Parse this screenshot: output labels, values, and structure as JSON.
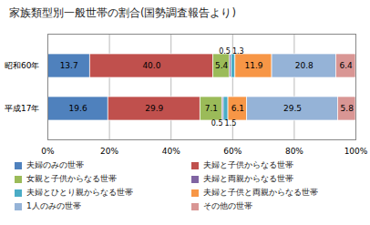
{
  "chart_data": {
    "type": "bar",
    "title": "家族類型別一般世帯の割合(国勢調査報告より)",
    "orientation": "horizontal",
    "stacked": true,
    "data_labels": true,
    "grid": true,
    "categories": [
      "昭和60年",
      "平成17年"
    ],
    "series": [
      {
        "name": "夫婦のみの世帯",
        "color": "#4f81bd",
        "values": [
          13.7,
          19.6
        ]
      },
      {
        "name": "夫婦と子供からなる世帯",
        "color": "#c0504d",
        "values": [
          40.0,
          29.9
        ],
        "value_labels": [
          "40.0",
          "29.9"
        ]
      },
      {
        "name": "女親と子供からなる世帯",
        "color": "#9bbb59",
        "values": [
          5.4,
          7.1
        ]
      },
      {
        "name": "夫婦と両親からなる世帯",
        "color": "#8064a2",
        "values": [
          0.5,
          0.5
        ]
      },
      {
        "name": "夫婦とひとり親からなる世帯",
        "color": "#4bacc6",
        "values": [
          1.3,
          1.5
        ]
      },
      {
        "name": "夫婦と子供と両親からなる世帯",
        "color": "#f79646",
        "values": [
          11.9,
          6.1
        ]
      },
      {
        "name": "1人のみの世帯",
        "color": "#95b3d7",
        "values": [
          20.8,
          29.5
        ]
      },
      {
        "name": "その他の世帯",
        "color": "#d99694",
        "values": [
          6.4,
          5.8
        ]
      }
    ],
    "xlim": [
      0,
      100
    ],
    "xticks": [
      {
        "value": 0,
        "label": "0%"
      },
      {
        "value": 20,
        "label": "20%"
      },
      {
        "value": 40,
        "label": "40%"
      },
      {
        "value": 60,
        "label": "60%"
      },
      {
        "value": 80,
        "label": "80%"
      },
      {
        "value": 100,
        "label": "100%"
      }
    ]
  }
}
